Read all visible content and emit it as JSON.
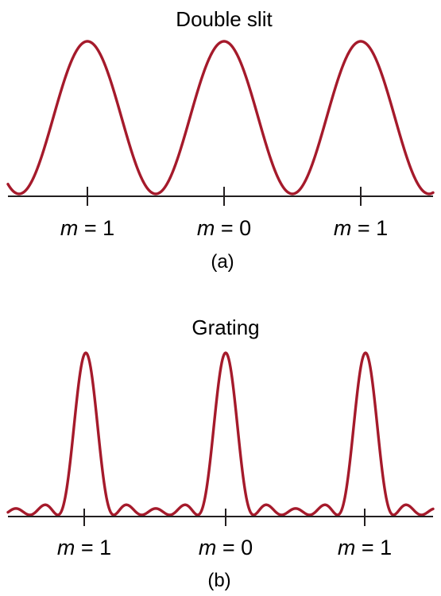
{
  "colors": {
    "curve": "#a51a2b",
    "text": "#231f20",
    "axis": "#231f20"
  },
  "panels": [
    {
      "title": "Double slit",
      "caption": "(a)",
      "pattern": "double-slit",
      "ticks": [
        {
          "var": "m",
          "eq": " = 1",
          "order": 1
        },
        {
          "var": "m",
          "eq": " = 0",
          "order": 0
        },
        {
          "var": "m",
          "eq": " = 1",
          "order": 1
        }
      ]
    },
    {
      "title": "Grating",
      "caption": "(b)",
      "pattern": "grating",
      "ticks": [
        {
          "var": "m",
          "eq": " = 1",
          "order": 1
        },
        {
          "var": "m",
          "eq": " = 0",
          "order": 0
        },
        {
          "var": "m",
          "eq": " = 1",
          "order": 1
        }
      ]
    }
  ]
}
